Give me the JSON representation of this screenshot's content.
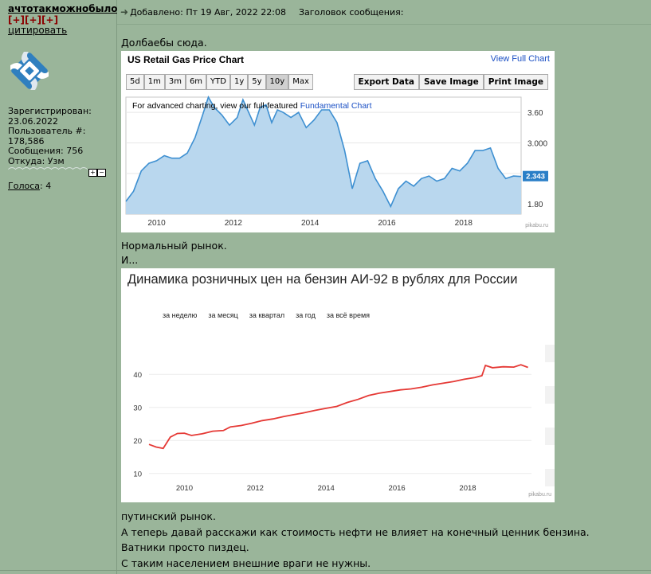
{
  "user": {
    "name": "ачтотакможнобыло",
    "flags": "[+][+][+]",
    "quote_link": "цитировать",
    "registered_label": "Зарегистрирован:",
    "registered_date": "23.06.2022",
    "user_no_label": "Пользователь #:",
    "user_no": "178,586",
    "posts": "Сообщения: 756",
    "from": "Откуда: Узм",
    "votes_label": "Голоса",
    "votes_value": ": 4"
  },
  "post": {
    "added": "Добавлено: Пт 19 Авг, 2022 22:08",
    "subject": "Заголовок сообщения:",
    "line1": "Долбаебы сюда.",
    "line2": "Нормальный рынок.",
    "line3": "И...",
    "line4": "путинский рынок.",
    "line5": "А теперь давай расскажи как стоимость нефти не влияет на конечный ценник бензина.",
    "line6": "Ватники просто пиздец.",
    "line7": "С таким населением внешние враги не нужны."
  },
  "chart1": {
    "title": "US Retail Gas Price Chart",
    "view_full": "View Full Chart",
    "ranges": [
      "5d",
      "1m",
      "3m",
      "6m",
      "YTD",
      "1y",
      "5y",
      "10y",
      "Max"
    ],
    "selected_range": "10y",
    "export_buttons": [
      "Export Data",
      "Save Image",
      "Print Image"
    ],
    "note_prefix": "For advanced charting, view our full-featured ",
    "note_link": "Fundamental Chart",
    "last_value": "2.343",
    "watermark": "pikabu.ru",
    "fill_color": "#b9d7ee",
    "line_color": "#3d8fd1"
  },
  "chart2": {
    "title": "Динамика розничных цен на бензин АИ-92 в рублях для России",
    "periods": [
      "за неделю",
      "за месяц",
      "за квартал",
      "за год",
      "за всё время"
    ],
    "watermark": "pikabu.ru",
    "line_color": "#e53935"
  },
  "chart_data": [
    {
      "type": "area",
      "title": "US Retail Gas Price Chart",
      "x_ticks": [
        "2010",
        "2012",
        "2014",
        "2016",
        "2018"
      ],
      "y_ticks": [
        "1.80",
        "2.40",
        "3.000",
        "3.60"
      ],
      "ylim": [
        1.6,
        3.9
      ],
      "xlim": [
        2009.2,
        2019.5
      ],
      "x": [
        2009.2,
        2009.4,
        2009.6,
        2009.8,
        2010.0,
        2010.2,
        2010.4,
        2010.6,
        2010.8,
        2011.0,
        2011.2,
        2011.35,
        2011.5,
        2011.7,
        2011.9,
        2012.1,
        2012.25,
        2012.4,
        2012.55,
        2012.7,
        2012.85,
        2013.0,
        2013.15,
        2013.3,
        2013.5,
        2013.7,
        2013.9,
        2014.1,
        2014.3,
        2014.5,
        2014.7,
        2014.9,
        2015.1,
        2015.3,
        2015.5,
        2015.7,
        2015.9,
        2016.1,
        2016.3,
        2016.5,
        2016.7,
        2016.9,
        2017.1,
        2017.3,
        2017.5,
        2017.7,
        2017.9,
        2018.1,
        2018.3,
        2018.5,
        2018.7,
        2018.9,
        2019.1,
        2019.3,
        2019.5
      ],
      "y": [
        1.85,
        2.05,
        2.45,
        2.6,
        2.65,
        2.75,
        2.7,
        2.7,
        2.8,
        3.1,
        3.55,
        3.9,
        3.7,
        3.55,
        3.35,
        3.5,
        3.85,
        3.6,
        3.35,
        3.7,
        3.75,
        3.4,
        3.65,
        3.6,
        3.5,
        3.6,
        3.3,
        3.45,
        3.65,
        3.65,
        3.4,
        2.85,
        2.1,
        2.6,
        2.65,
        2.3,
        2.05,
        1.75,
        2.1,
        2.25,
        2.15,
        2.3,
        2.35,
        2.25,
        2.3,
        2.5,
        2.45,
        2.6,
        2.85,
        2.85,
        2.9,
        2.5,
        2.3,
        2.35,
        2.34
      ],
      "last_value_label": "2.343"
    },
    {
      "type": "line",
      "title": "Динамика розничных цен на бензин АИ-92 в рублях для России",
      "x_ticks": [
        "2010",
        "2012",
        "2014",
        "2016",
        "2018"
      ],
      "y_ticks": [
        "10",
        "20",
        "30",
        "40"
      ],
      "ylim": [
        8,
        48
      ],
      "xlim": [
        2009.0,
        2019.8
      ],
      "x": [
        2009.0,
        2009.2,
        2009.4,
        2009.6,
        2009.8,
        2010.0,
        2010.2,
        2010.5,
        2010.8,
        2011.1,
        2011.3,
        2011.6,
        2011.9,
        2012.2,
        2012.5,
        2012.8,
        2013.1,
        2013.4,
        2013.7,
        2014.0,
        2014.3,
        2014.6,
        2014.9,
        2015.2,
        2015.5,
        2015.8,
        2016.1,
        2016.4,
        2016.7,
        2017.0,
        2017.3,
        2017.6,
        2017.9,
        2018.2,
        2018.4,
        2018.5,
        2018.7,
        2019.0,
        2019.3,
        2019.5,
        2019.7
      ],
      "y": [
        18.8,
        18.0,
        17.6,
        21.0,
        22.1,
        22.2,
        21.5,
        22.0,
        22.8,
        23.0,
        24.1,
        24.5,
        25.2,
        26.0,
        26.5,
        27.2,
        27.8,
        28.4,
        29.1,
        29.7,
        30.3,
        31.5,
        32.4,
        33.6,
        34.3,
        34.8,
        35.3,
        35.6,
        36.1,
        36.8,
        37.3,
        37.8,
        38.5,
        39.0,
        39.6,
        42.7,
        42.0,
        42.3,
        42.2,
        42.9,
        42.1
      ]
    }
  ]
}
